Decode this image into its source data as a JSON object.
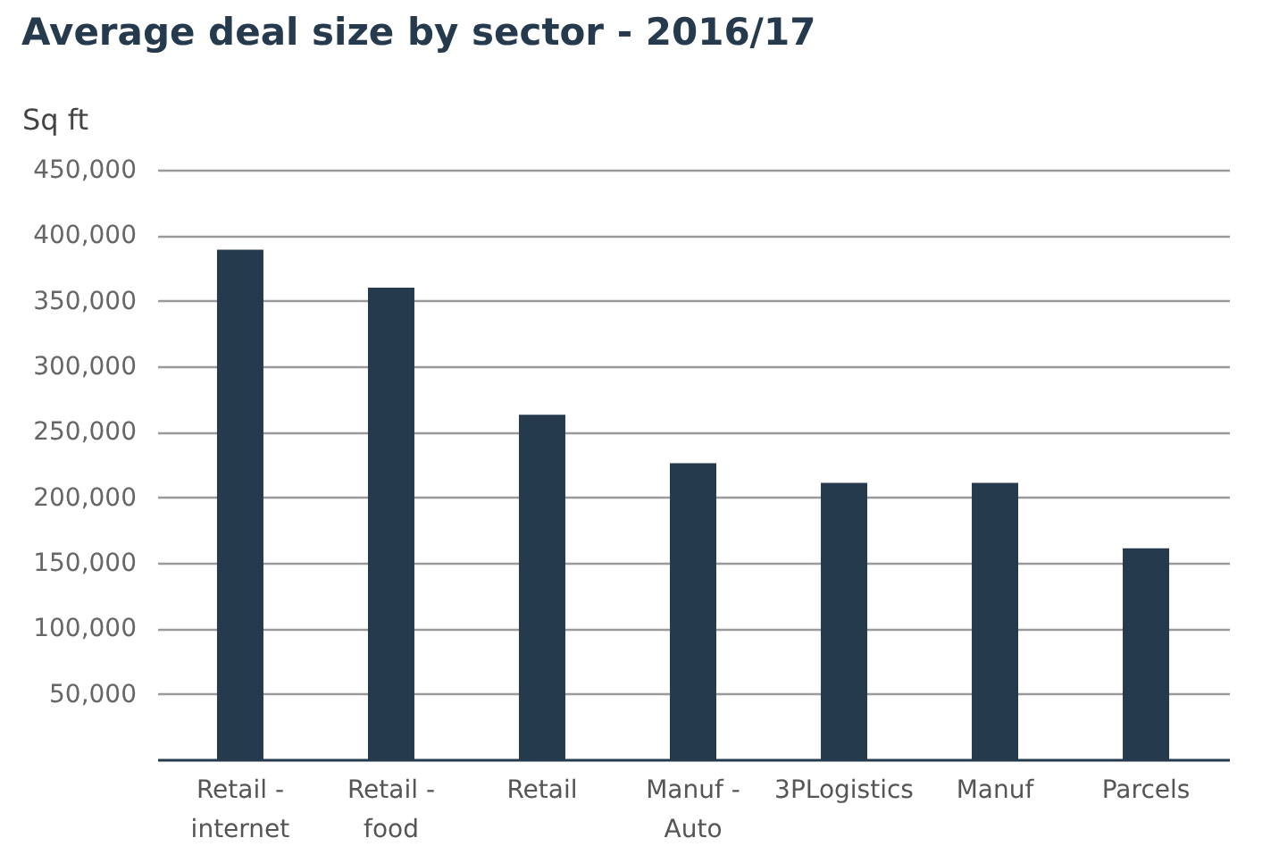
{
  "chart_data": {
    "type": "bar",
    "title": "Average deal size by sector - 2016/17",
    "ylabel": "Sq ft",
    "categories": [
      "Retail - internet",
      "Retail - food",
      "Retail",
      "Manuf - Auto",
      "3PLogistics",
      "Manuf",
      "Parcels"
    ],
    "values": [
      389000,
      360000,
      263000,
      226000,
      211000,
      211000,
      161000
    ],
    "color": "#263a4e",
    "ylim": [
      0,
      450000
    ],
    "yticks": [
      {
        "value": 50000,
        "label": "50,000"
      },
      {
        "value": 100000,
        "label": "100,000"
      },
      {
        "value": 150000,
        "label": "150,000"
      },
      {
        "value": 200000,
        "label": "200,000"
      },
      {
        "value": 250000,
        "label": "250,000"
      },
      {
        "value": 300000,
        "label": "300,000"
      },
      {
        "value": 350000,
        "label": "350,000"
      },
      {
        "value": 400000,
        "label": "400,000"
      },
      {
        "value": 450000,
        "label": "450,000"
      }
    ],
    "grid": "y"
  }
}
